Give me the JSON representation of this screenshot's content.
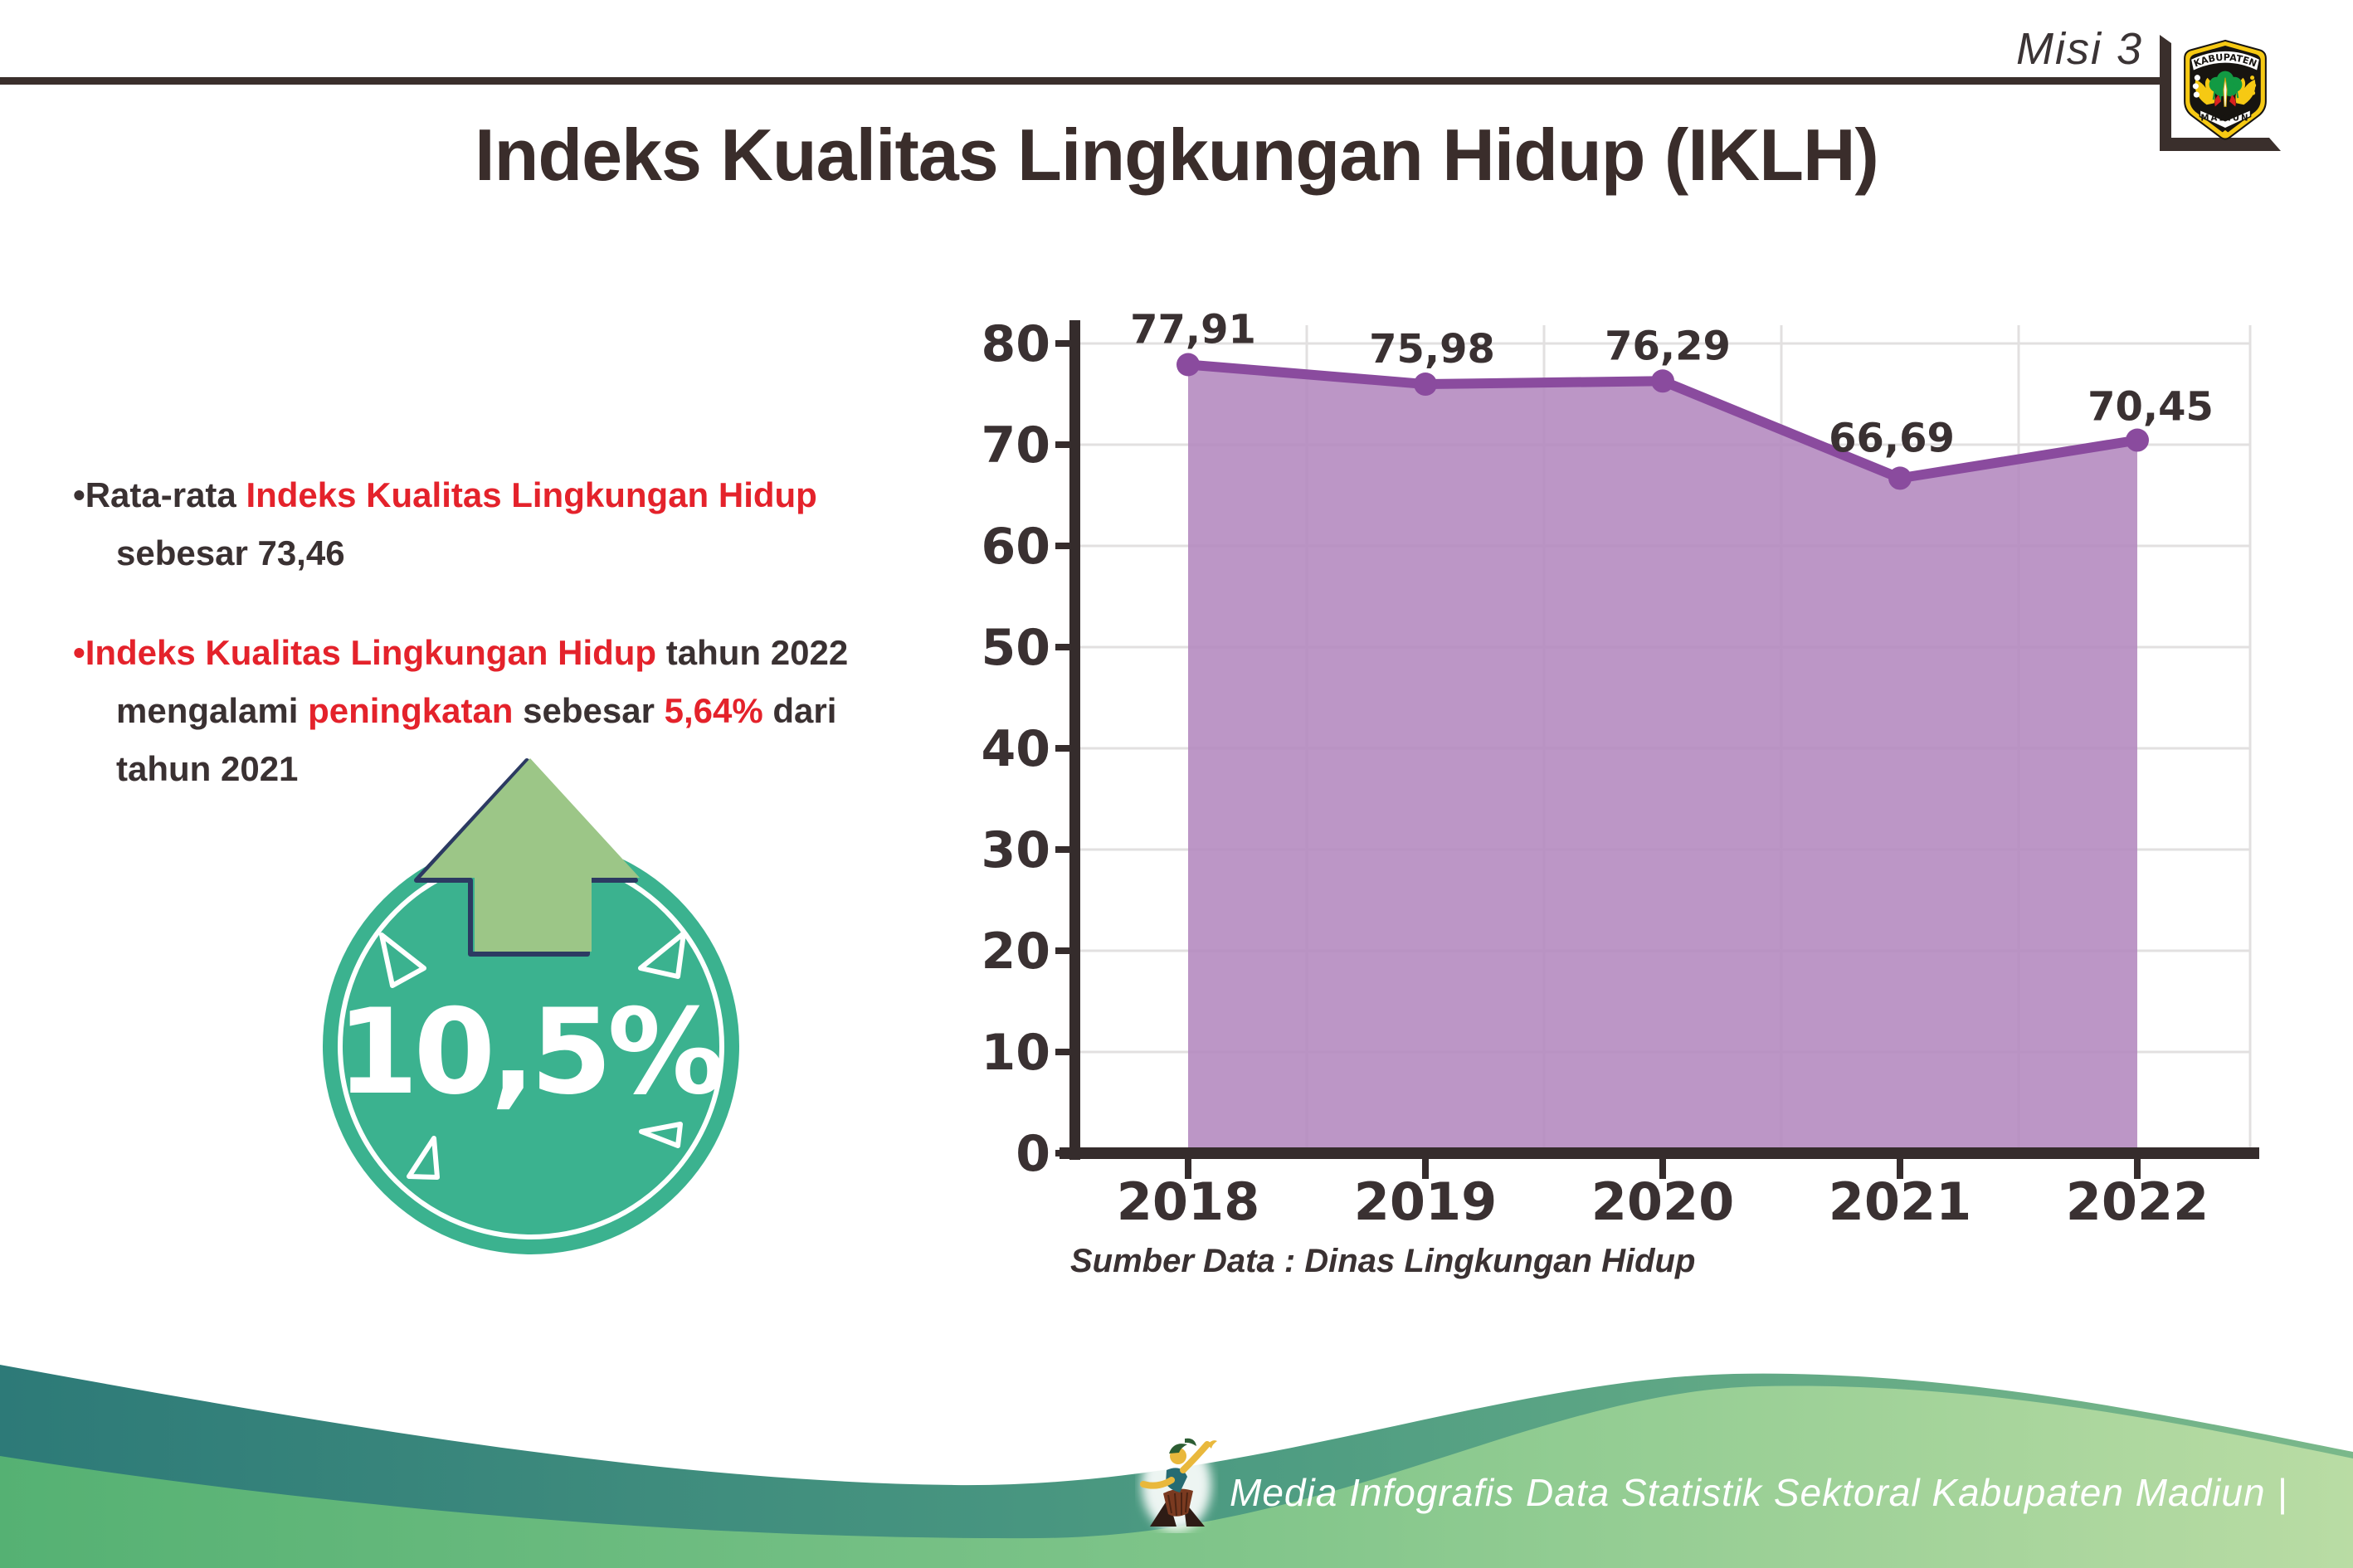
{
  "header": {
    "misi": "Misi 3",
    "title": "Indeks Kualitas Lingkungan Hidup (IKLH)"
  },
  "logo": {
    "top_text": "KABUPATEN",
    "bottom_text": "MADIUN"
  },
  "bullets": {
    "b1": {
      "l1_pre": "•Rata-rata ",
      "l1_red": "Indeks Kualitas Lingkungan Hidup",
      "l2": "sebesar 73,46"
    },
    "b2": {
      "l1_red": "•Indeks Kualitas Lingkungan Hidup",
      "l1_post": " tahun 2022",
      "l2_a": "mengalami ",
      "l2_red": "peningkatan",
      "l2_b": " sebesar ",
      "l2_red2": "5,64%",
      "l2_c": " dari",
      "l3": "tahun 2021"
    }
  },
  "badge": {
    "value": "10,5%"
  },
  "chart_data": {
    "type": "area",
    "title": "",
    "xlabel": "",
    "ylabel": "",
    "categories": [
      "2018",
      "2019",
      "2020",
      "2021",
      "2022"
    ],
    "values": [
      77.91,
      75.98,
      76.29,
      66.69,
      70.45
    ],
    "value_labels": [
      "77,91",
      "75,98",
      "76,29",
      "66,69",
      "70,45"
    ],
    "ylim": [
      0,
      80
    ],
    "ytick_step": 10,
    "grid": true,
    "legend": false
  },
  "source": {
    "text": "Sumber Data : Dinas Lingkungan Hidup"
  },
  "footer": {
    "text": "Media Infografis Data Statistik Sektoral Kabupaten Madiun |"
  },
  "colors": {
    "accent_red": "#e4222b",
    "dark_text": "#3a3132",
    "chart_fill": "#b58bc0",
    "chart_line": "#8a4b9e",
    "gridline": "#e2e0e0",
    "axis": "#352c2c",
    "badge_teal": "#3bb28f",
    "arrow_green": "#9cc687",
    "arrow_outline_navy": "#2c3a62",
    "wave_teal_dark": "#2d7a78",
    "wave_green_light": "#b9dca4",
    "logo_yellow": "#f6c913"
  }
}
